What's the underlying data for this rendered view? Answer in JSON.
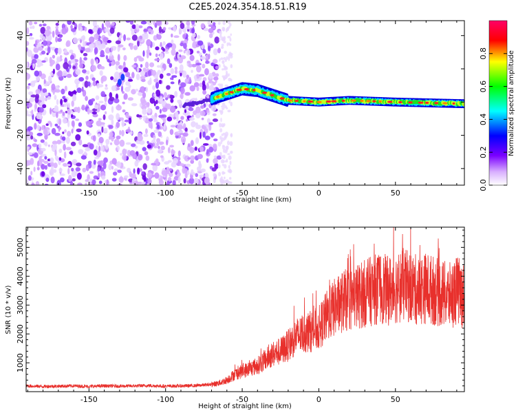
{
  "title": "C2E5.2024.354.18.51.R19",
  "colors": {
    "snr_line": "#e8302c",
    "noise_purple": "#7a1fe0",
    "background": "#ffffff"
  },
  "chart_data": [
    {
      "type": "heatmap",
      "xlabel": "Height of straight line (km)",
      "ylabel": "Frequency (Hz)",
      "xlim": [
        -191,
        95
      ],
      "ylim": [
        -50,
        49
      ],
      "xticks": [
        -150,
        -100,
        -50,
        0,
        50
      ],
      "yticks": [
        -40,
        -20,
        0,
        20,
        40
      ],
      "colorbar": {
        "label": "Normalized spectral amplitude",
        "range": [
          0.0,
          1.0
        ],
        "ticks": [
          "0.0",
          "0.2",
          "0.4",
          "0.6",
          "0.8"
        ],
        "colors": [
          "#ffffff",
          "#d9b0ff",
          "#7a00ff",
          "#0000ff",
          "#00ffff",
          "#00ff00",
          "#ffff00",
          "#ff0000",
          "#ff0066"
        ]
      },
      "features": [
        {
          "name": "noise region",
          "x_range": [
            -191,
            -65
          ],
          "freq_range": [
            -50,
            49
          ],
          "amplitude": 0.15
        },
        {
          "name": "ridge",
          "points": [
            [
              -70,
              2
            ],
            [
              -60,
              5
            ],
            [
              -50,
              8
            ],
            [
              -40,
              7
            ],
            [
              -30,
              4
            ],
            [
              -20,
              1
            ],
            [
              0,
              0
            ],
            [
              20,
              1
            ],
            [
              50,
              0
            ],
            [
              95,
              -1
            ]
          ]
        }
      ]
    },
    {
      "type": "line",
      "xlabel": "Height of straight line (km)",
      "ylabel": "SNR (10 * v/v)",
      "xlim": [
        -191,
        95
      ],
      "ylim": [
        0,
        5700
      ],
      "xticks": [
        -150,
        -100,
        -50,
        0,
        50
      ],
      "yticks": [
        1000,
        2000,
        3000,
        4000,
        5000
      ],
      "series": [
        {
          "color": "#e8302c",
          "x": [
            -191,
            -180,
            -170,
            -160,
            -150,
            -140,
            -130,
            -120,
            -110,
            -100,
            -90,
            -80,
            -70,
            -65,
            -60,
            -55,
            -50,
            -45,
            -40,
            -35,
            -30,
            -25,
            -20,
            -15,
            -10,
            -5,
            0,
            5,
            10,
            15,
            20,
            25,
            30,
            35,
            40,
            45,
            50,
            55,
            60,
            65,
            70,
            75,
            80,
            85,
            90,
            95
          ],
          "y": [
            200,
            180,
            190,
            200,
            180,
            200,
            190,
            200,
            210,
            190,
            200,
            210,
            250,
            300,
            400,
            600,
            700,
            800,
            900,
            1100,
            1300,
            1400,
            1600,
            1900,
            2000,
            2100,
            2200,
            2600,
            2900,
            3100,
            3200,
            3300,
            3400,
            3500,
            3600,
            3500,
            3600,
            3700,
            3600,
            3500,
            3600,
            3500,
            3400,
            3300,
            3500,
            3300
          ]
        }
      ]
    }
  ]
}
